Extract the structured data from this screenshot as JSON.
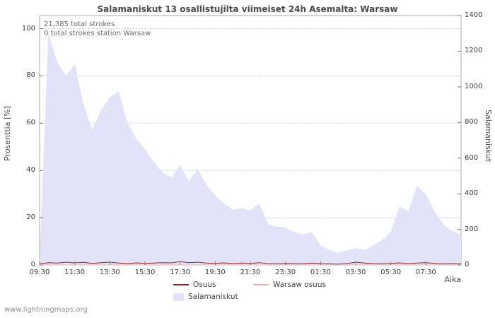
{
  "title": "Salamaniskut 13 osallistujilta viimeiset 24h Asemalta: Warsaw",
  "annotations": [
    "21,385 total strokes",
    "0 total strokes station Warsaw"
  ],
  "watermark": "www.lightningmaps.org",
  "colors": {
    "area": "#e2e2f9",
    "osuus": "#8c2a2a",
    "warsaw": "#f0b2b0",
    "grid": "#c9c9c9",
    "border": "#aaaaaa",
    "tickmark": "#777777"
  },
  "axes": {
    "left_label": "Prosenttia   [%]",
    "right_label": "Salamaniskut",
    "x_label": "Aika",
    "left_ticks": [
      0,
      20,
      40,
      60,
      80,
      100
    ],
    "right_ticks": [
      0,
      200,
      400,
      600,
      800,
      1000,
      1200,
      1400
    ],
    "x_ticks": [
      "09:30",
      "11:30",
      "13:30",
      "15:30",
      "17:30",
      "19:30",
      "21:30",
      "23:30",
      "01:30",
      "03:30",
      "05:30",
      "07:30"
    ]
  },
  "legend": {
    "osuus_label": "Osuus",
    "warsaw_label": "Warsaw osuus",
    "salamaniskut_label": "Salamaniskut",
    "position": "bottom"
  },
  "chart_data": {
    "type": "area",
    "title": "Salamaniskut 13 osallistujilta viimeiset 24h Asemalta: Warsaw",
    "xlabel": "Aika",
    "ylabel_left": "Prosenttia [%]",
    "ylabel_right": "Salamaniskut",
    "ylim_left": [
      0,
      100
    ],
    "ylim_right": [
      0,
      1400
    ],
    "grid": true,
    "legend_position": "bottom",
    "x": [
      "09:30",
      "10:00",
      "10:30",
      "11:00",
      "11:30",
      "12:00",
      "12:30",
      "13:00",
      "13:30",
      "14:00",
      "14:30",
      "15:00",
      "15:30",
      "16:00",
      "16:30",
      "17:00",
      "17:30",
      "18:00",
      "18:30",
      "19:00",
      "19:30",
      "20:00",
      "20:30",
      "21:00",
      "21:30",
      "22:00",
      "22:30",
      "23:00",
      "23:30",
      "00:00",
      "00:30",
      "01:00",
      "01:30",
      "02:00",
      "02:30",
      "03:00",
      "03:30",
      "04:00",
      "04:30",
      "05:00",
      "05:30",
      "06:00",
      "06:30",
      "07:00",
      "07:30",
      "08:00",
      "08:30",
      "09:00",
      "09:30"
    ],
    "series": [
      {
        "name": "Salamaniskut",
        "axis": "right",
        "style": "area",
        "values": [
          40,
          1300,
          1140,
          1060,
          1130,
          900,
          760,
          870,
          940,
          975,
          800,
          710,
          650,
          580,
          520,
          490,
          560,
          470,
          540,
          450,
          390,
          345,
          310,
          320,
          305,
          345,
          230,
          215,
          210,
          185,
          170,
          185,
          110,
          85,
          68,
          80,
          95,
          85,
          110,
          140,
          185,
          330,
          300,
          445,
          395,
          300,
          225,
          190,
          170
        ]
      },
      {
        "name": "Osuus",
        "axis": "left",
        "style": "line",
        "values": [
          0.5,
          1.0,
          0.8,
          1.2,
          0.9,
          1.1,
          0.7,
          1.0,
          1.2,
          0.8,
          0.6,
          0.9,
          0.7,
          0.8,
          1.0,
          0.9,
          1.4,
          1.0,
          1.2,
          0.8,
          0.7,
          0.9,
          0.6,
          0.8,
          0.7,
          1.0,
          0.6,
          0.5,
          0.7,
          0.6,
          0.5,
          0.8,
          0.6,
          0.5,
          0.4,
          0.6,
          1.2,
          0.8,
          0.6,
          0.5,
          0.7,
          0.9,
          0.6,
          0.8,
          1.0,
          0.7,
          0.5,
          0.6,
          0.5
        ]
      },
      {
        "name": "Warsaw osuus",
        "axis": "left",
        "style": "line",
        "values": [
          0,
          0,
          0,
          0,
          0,
          0,
          0,
          0,
          0,
          0,
          0,
          0,
          0,
          0,
          0,
          0,
          0,
          0,
          0,
          0,
          0,
          0,
          0,
          0,
          0,
          0,
          0,
          0,
          0,
          0,
          0,
          0,
          0,
          0,
          0,
          0,
          0,
          0,
          0,
          0,
          0,
          0,
          0,
          0,
          0,
          0,
          0,
          0,
          0
        ]
      }
    ]
  }
}
